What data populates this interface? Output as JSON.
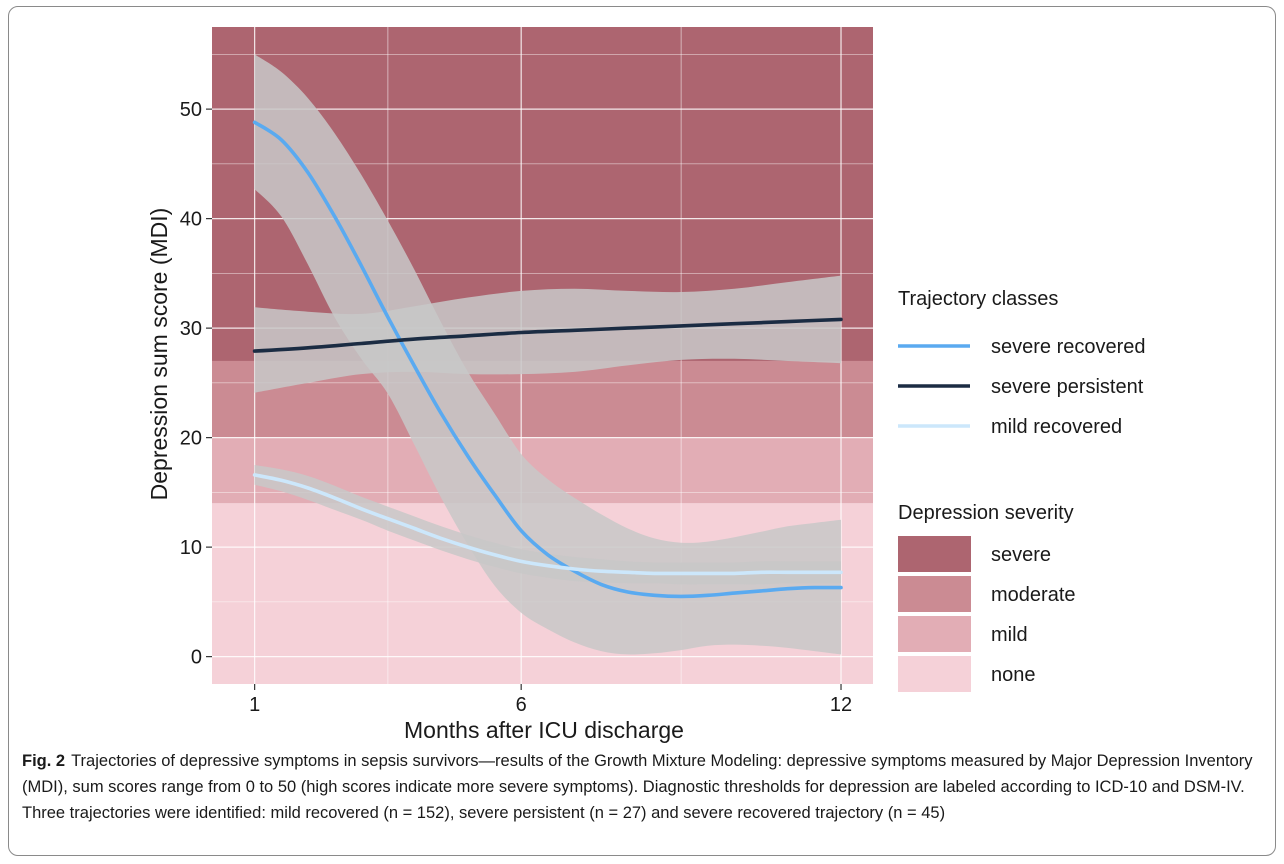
{
  "chart_data": {
    "type": "line",
    "xlabel": "Months after ICU discharge",
    "ylabel": "Depression sum score (MDI)",
    "xlim": [
      0.2,
      12.6
    ],
    "ylim": [
      -2.5,
      57.5
    ],
    "xticks": [
      1,
      6,
      12
    ],
    "yticks": [
      0,
      10,
      20,
      30,
      40,
      50
    ],
    "x_minor_gridlines": [
      3.5,
      9
    ],
    "y_minor_gridlines": [
      5,
      15,
      25,
      35,
      45,
      55
    ],
    "grid": true,
    "legend_position": "right",
    "bands_legend_title": "Depression severity",
    "bands": [
      {
        "name": "severe",
        "from": 27,
        "to": 57.5,
        "color": "#ad6570"
      },
      {
        "name": "moderate",
        "from": 20,
        "to": 27,
        "color": "#cb8b93"
      },
      {
        "name": "mild",
        "from": 14,
        "to": 20,
        "color": "#e2adb5"
      },
      {
        "name": "none",
        "from": -2.5,
        "to": 14,
        "color": "#f5d1d8"
      }
    ],
    "series_legend_title": "Trajectory classes",
    "series": [
      {
        "name": "severe recovered",
        "color": "#5aaaf0",
        "x": [
          1,
          1.5,
          2,
          2.5,
          3,
          3.5,
          4,
          4.5,
          5,
          5.5,
          6,
          6.5,
          7,
          7.5,
          8,
          8.5,
          9,
          9.5,
          10,
          10.5,
          11,
          11.5,
          12
        ],
        "y": [
          48.8,
          47.2,
          44.2,
          40.2,
          35.7,
          31.0,
          26.5,
          22.2,
          18.3,
          14.8,
          11.5,
          9.3,
          7.8,
          6.6,
          5.9,
          5.6,
          5.5,
          5.6,
          5.8,
          6.0,
          6.2,
          6.3,
          6.3
        ],
        "lower": [
          42.7,
          40.2,
          35.8,
          31.0,
          27.2,
          24.0,
          19.3,
          14.5,
          10.2,
          6.5,
          4.0,
          2.5,
          1.3,
          0.5,
          0.2,
          0.3,
          0.6,
          1.0,
          1.1,
          1.0,
          0.8,
          0.5,
          0.2
        ],
        "upper": [
          55.0,
          53.4,
          51.0,
          47.8,
          44.0,
          39.8,
          35.3,
          30.5,
          26.0,
          22.2,
          18.5,
          16.2,
          14.5,
          13.0,
          11.7,
          10.8,
          10.4,
          10.5,
          10.9,
          11.4,
          11.9,
          12.2,
          12.5
        ]
      },
      {
        "name": "severe persistent",
        "color": "#1b2c43",
        "x": [
          1,
          2,
          3,
          4,
          5,
          6,
          7,
          8,
          9,
          10,
          11,
          12
        ],
        "y": [
          27.9,
          28.2,
          28.6,
          29.0,
          29.3,
          29.6,
          29.8,
          30.0,
          30.2,
          30.4,
          30.6,
          30.8
        ],
        "lower": [
          24.1,
          25.0,
          25.8,
          26.0,
          25.8,
          25.8,
          26.0,
          26.6,
          27.1,
          27.2,
          27.0,
          26.8
        ],
        "upper": [
          31.9,
          31.5,
          31.3,
          32.0,
          32.8,
          33.4,
          33.6,
          33.4,
          33.3,
          33.6,
          34.2,
          34.8
        ]
      },
      {
        "name": "mild recovered",
        "color": "#cce7fb",
        "x": [
          1,
          1.5,
          2,
          2.5,
          3,
          3.5,
          4,
          4.5,
          5,
          5.5,
          6,
          6.5,
          7,
          7.5,
          8,
          8.5,
          9,
          9.5,
          10,
          10.5,
          11,
          11.5,
          12
        ],
        "y": [
          16.6,
          16.1,
          15.4,
          14.5,
          13.5,
          12.6,
          11.7,
          10.8,
          10.0,
          9.3,
          8.7,
          8.3,
          8.0,
          7.8,
          7.7,
          7.6,
          7.6,
          7.6,
          7.6,
          7.7,
          7.7,
          7.7,
          7.7
        ],
        "lower": [
          15.7,
          15.1,
          14.3,
          13.4,
          12.5,
          11.5,
          10.6,
          9.7,
          8.9,
          8.2,
          7.6,
          7.2,
          6.9,
          6.8,
          6.7,
          6.7,
          6.6,
          6.6,
          6.6,
          6.6,
          6.7,
          6.7,
          6.7
        ],
        "upper": [
          17.5,
          17.1,
          16.5,
          15.6,
          14.6,
          13.7,
          12.8,
          11.9,
          11.1,
          10.4,
          9.8,
          9.4,
          9.1,
          8.9,
          8.7,
          8.6,
          8.6,
          8.6,
          8.6,
          8.7,
          8.7,
          8.7,
          8.7
        ]
      }
    ]
  },
  "caption": {
    "label": "Fig. 2",
    "text": "Trajectories of depressive symptoms in sepsis survivors—results of the Growth Mixture Modeling: depressive symptoms measured by Major Depression Inventory (MDI), sum scores range from 0 to 50 (high scores indicate more severe symptoms). Diagnostic thresholds for depression are labeled according to ICD-10 and DSM-IV. Three trajectories were identified: mild recovered (n = 152), severe persistent (n = 27) and severe recovered trajectory (n = 45)"
  }
}
